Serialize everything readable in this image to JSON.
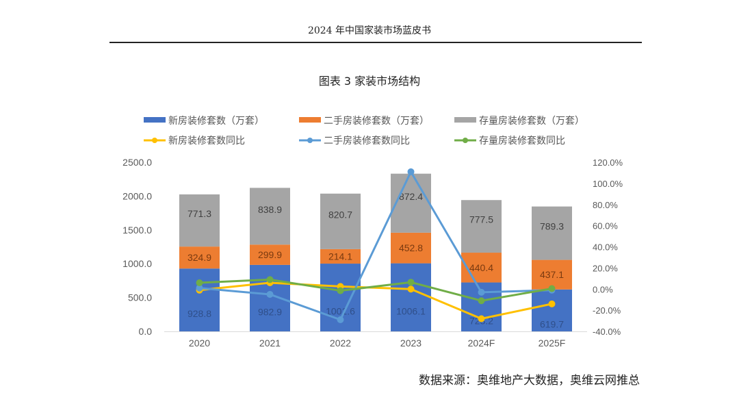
{
  "document": {
    "header": "2024 年中国家装市场蓝皮书",
    "source": "数据来源：奥维地产大数据，奥维云网推总"
  },
  "chart_data": {
    "type": "bar+line",
    "title": "图表  3    家装市场结构",
    "categories": [
      "2020",
      "2021",
      "2022",
      "2023",
      "2024F",
      "2025F"
    ],
    "left_axis": {
      "ylim": [
        0,
        2500
      ],
      "ticks": [
        "0.0",
        "500.0",
        "1000.0",
        "1500.0",
        "2000.0",
        "2500.0"
      ]
    },
    "right_axis": {
      "ylim": [
        -40,
        120
      ],
      "ticks": [
        "-40.0%",
        "-20.0%",
        "0.0%",
        "20.0%",
        "40.0%",
        "60.0%",
        "80.0%",
        "100.0%",
        "120.0%"
      ]
    },
    "legend_position": "top",
    "grid": false,
    "bar_series": [
      {
        "name": "新房装修套数（万套）",
        "color": "#4472C4",
        "values": [
          928.8,
          982.9,
          1001.6,
          1006.1,
          723.2,
          619.7
        ],
        "labels": [
          "928.8",
          "982.9",
          "1001.6",
          "1006.1",
          "723.2",
          "619.7"
        ]
      },
      {
        "name": "二手房装修套数（万套）",
        "color": "#ED7D31",
        "values": [
          324.9,
          299.9,
          214.1,
          452.8,
          440.4,
          437.1
        ],
        "labels": [
          "324.9",
          "299.9",
          "214.1",
          "452.8",
          "440.4",
          "437.1"
        ]
      },
      {
        "name": "存量房装修套数（万套）",
        "color": "#A5A5A5",
        "values": [
          771.3,
          838.9,
          820.7,
          872.4,
          777.5,
          789.3
        ],
        "labels": [
          "771.3",
          "838.9",
          "820.7",
          "872.4",
          "777.5",
          "789.3"
        ]
      }
    ],
    "line_series": [
      {
        "name": "新房装修套数同比",
        "color": "#FFC000",
        "values": [
          -1,
          6,
          2.5,
          0,
          -28,
          -14
        ]
      },
      {
        "name": "二手房装修套数同比",
        "color": "#5B9BD5",
        "values": [
          1,
          -5,
          -29,
          111,
          -3,
          -1
        ]
      },
      {
        "name": "存量房装修套数同比",
        "color": "#70AD47",
        "values": [
          6,
          9,
          -1.5,
          6.5,
          -11,
          0.5
        ]
      }
    ]
  }
}
